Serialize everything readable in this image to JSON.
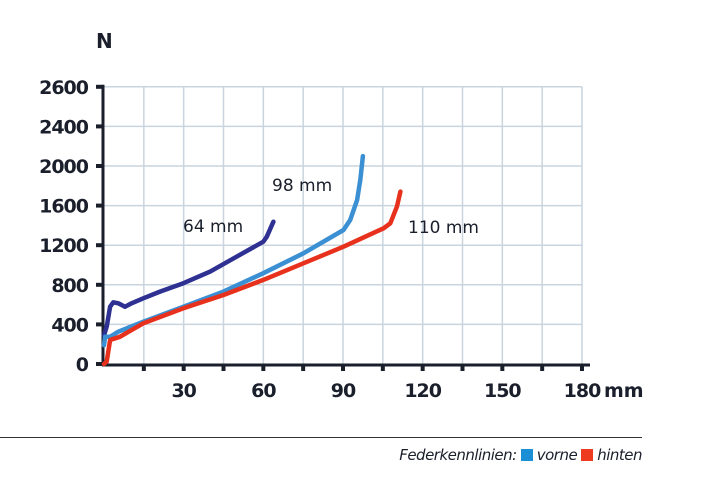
{
  "chart_data": {
    "type": "line",
    "ylabel": "N",
    "xlabel": "mm",
    "x_ticks": [
      "30",
      "60",
      "90",
      "120",
      "150",
      "180"
    ],
    "y_ticks": [
      "0",
      "400",
      "800",
      "1200",
      "1600",
      "2000",
      "2400",
      "2600"
    ],
    "xlim": [
      0,
      180
    ],
    "grid": true,
    "series": [
      {
        "label": "64 mm",
        "color": "#2e3192",
        "points": [
          [
            0,
            290
          ],
          [
            1,
            377
          ],
          [
            2.3,
            579
          ],
          [
            3.5,
            623
          ],
          [
            5.4,
            613
          ],
          [
            7.9,
            579
          ],
          [
            10.4,
            613
          ],
          [
            14.8,
            664
          ],
          [
            21.1,
            731
          ],
          [
            29.9,
            816
          ],
          [
            40,
            933
          ],
          [
            50,
            1085
          ],
          [
            60,
            1235
          ],
          [
            61.3,
            1286
          ],
          [
            63.8,
            1437
          ]
        ]
      },
      {
        "label": "98 mm",
        "color": "#3b8fd3",
        "points": [
          [
            0,
            190
          ],
          [
            0.4,
            275
          ],
          [
            2.3,
            275
          ],
          [
            5.4,
            326
          ],
          [
            14.8,
            427
          ],
          [
            29.9,
            579
          ],
          [
            45,
            731
          ],
          [
            60,
            917
          ],
          [
            75.1,
            1118
          ],
          [
            90.2,
            1354
          ],
          [
            92.7,
            1455
          ],
          [
            95.3,
            1657
          ],
          [
            96.5,
            1860
          ],
          [
            97.5,
            2100
          ]
        ]
      },
      {
        "label": "110 mm",
        "color": "#e8311d",
        "points": [
          [
            0,
            0
          ],
          [
            1,
            24
          ],
          [
            2.3,
            242
          ],
          [
            6,
            275
          ],
          [
            14.8,
            411
          ],
          [
            29.9,
            563
          ],
          [
            45,
            697
          ],
          [
            60,
            849
          ],
          [
            75.1,
            1017
          ],
          [
            90.2,
            1185
          ],
          [
            105.3,
            1371
          ],
          [
            107.8,
            1421
          ],
          [
            110.3,
            1589
          ],
          [
            111.6,
            1741
          ]
        ]
      }
    ]
  },
  "legend": {
    "title": "Federkennlinien:",
    "items": [
      {
        "label": "vorne",
        "color": "#1b8fd6"
      },
      {
        "label": "hinten",
        "color": "#ee3a1f"
      }
    ]
  }
}
